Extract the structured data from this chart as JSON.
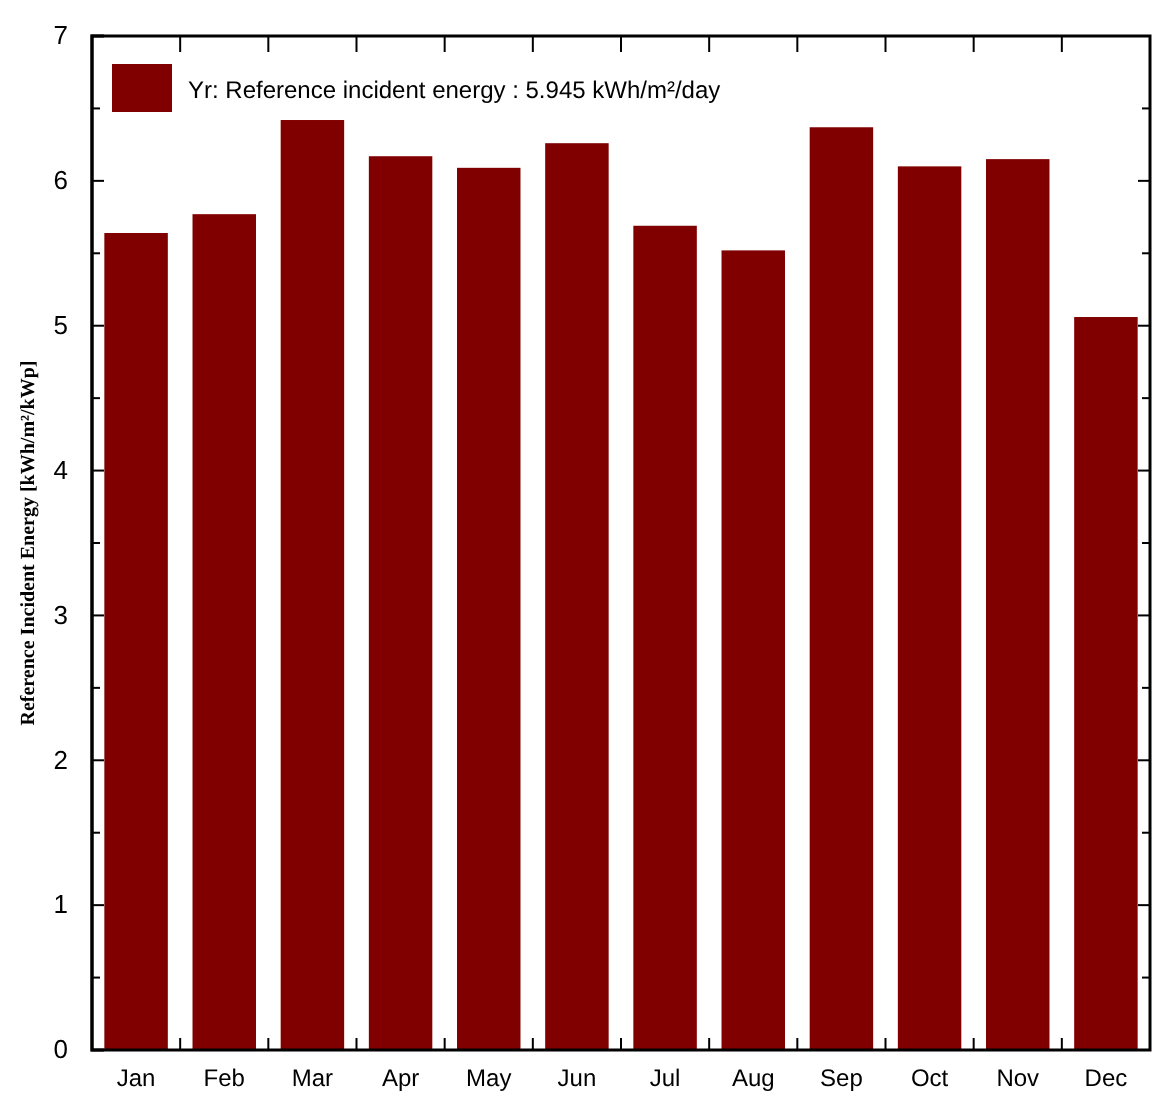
{
  "chart_data": {
    "type": "bar",
    "ylabel": "Reference Incident Energy [kWh/m²/kWp]",
    "categories": [
      "Jan",
      "Feb",
      "Mar",
      "Apr",
      "May",
      "Jun",
      "Jul",
      "Aug",
      "Sep",
      "Oct",
      "Nov",
      "Dec"
    ],
    "series": [
      {
        "name": "Yr: Reference incident energy :  5.945 kWh/m²/day",
        "color": "#800000",
        "values": [
          5.64,
          5.77,
          6.42,
          6.17,
          6.09,
          6.26,
          5.69,
          5.52,
          6.37,
          6.1,
          6.15,
          5.06
        ]
      }
    ],
    "ylim": [
      0,
      7
    ],
    "yticks": [
      0,
      1,
      2,
      3,
      4,
      5,
      6,
      7
    ],
    "legend": "top left",
    "grid": false
  }
}
